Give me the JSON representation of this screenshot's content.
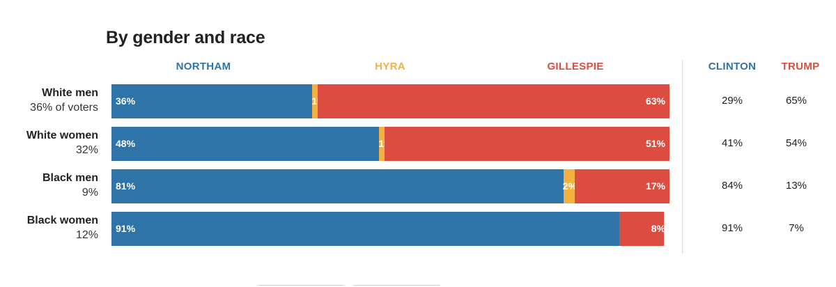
{
  "title": "By gender and race",
  "colors": {
    "northam": "#2f74a8",
    "hyra": "#f2b140",
    "gillespie": "#dc4c41",
    "clinton": "#2f74a8",
    "trump": "#dc4c41"
  },
  "headers": {
    "northam": "NORTHAM",
    "hyra": "HYRA",
    "gillespie": "GILLESPIE",
    "clinton": "CLINTON",
    "trump": "TRUMP"
  },
  "rows": [
    {
      "group": "White men",
      "share": "36% of voters",
      "northam": "36%",
      "hyra": "1%",
      "gillespie": "63%",
      "clinton": "29%",
      "trump": "65%"
    },
    {
      "group": "White women",
      "share": "32%",
      "northam": "48%",
      "hyra": "1%",
      "gillespie": "51%",
      "clinton": "41%",
      "trump": "54%"
    },
    {
      "group": "Black men",
      "share": "9%",
      "northam": "81%",
      "hyra": "2%",
      "gillespie": "17%",
      "clinton": "84%",
      "trump": "13%"
    },
    {
      "group": "Black women",
      "share": "12%",
      "northam": "91%",
      "hyra": "",
      "gillespie": "8%",
      "clinton": "91%",
      "trump": "7%"
    }
  ],
  "chart_data": {
    "type": "bar",
    "title": "By gender and race",
    "stacked": true,
    "orientation": "horizontal",
    "categories": [
      "White men",
      "White women",
      "Black men",
      "Black women"
    ],
    "series": [
      {
        "name": "NORTHAM",
        "values": [
          36,
          48,
          81,
          91
        ]
      },
      {
        "name": "HYRA",
        "values": [
          1,
          1,
          2,
          0
        ]
      },
      {
        "name": "GILLESPIE",
        "values": [
          63,
          51,
          17,
          8
        ]
      }
    ],
    "comparison": [
      {
        "name": "CLINTON",
        "values": [
          29,
          41,
          84,
          91
        ]
      },
      {
        "name": "TRUMP",
        "values": [
          65,
          54,
          13,
          7
        ]
      }
    ],
    "xlim": [
      0,
      100
    ],
    "grid": false
  }
}
